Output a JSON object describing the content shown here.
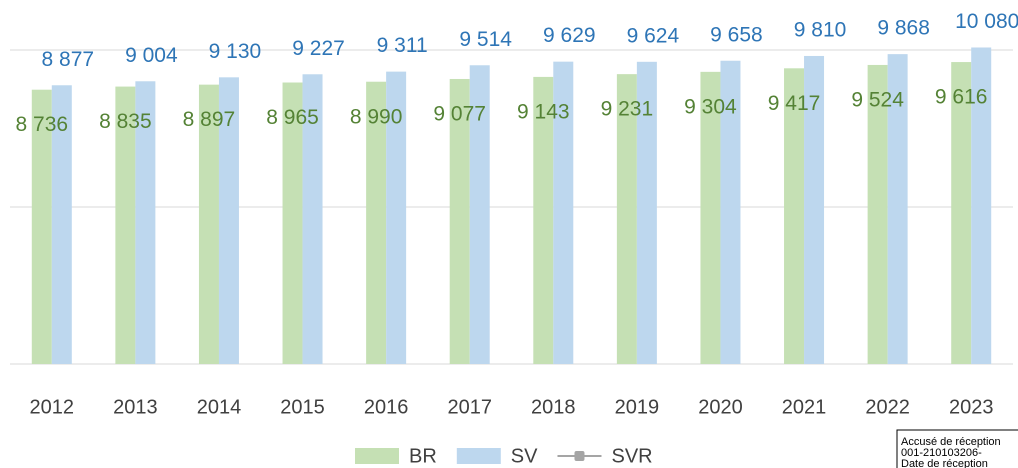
{
  "chart_data": {
    "type": "bar",
    "categories": [
      "2012",
      "2013",
      "2014",
      "2015",
      "2016",
      "2017",
      "2018",
      "2019",
      "2020",
      "2021",
      "2022",
      "2023"
    ],
    "series": [
      {
        "name": "BR",
        "color": "#c5e0b4",
        "label_color": "#548235",
        "values": [
          8736,
          8835,
          8897,
          8965,
          8990,
          9077,
          9143,
          9231,
          9304,
          9417,
          9524,
          9616
        ],
        "value_labels": [
          "8 736",
          "8 835",
          "8 897",
          "8 965",
          "8 990",
          "9 077",
          "9 143",
          "9 231",
          "9 304",
          "9 417",
          "9 524",
          "9 616"
        ]
      },
      {
        "name": "SV",
        "color": "#bdd7ee",
        "label_color": "#2e75b6",
        "values": [
          8877,
          9004,
          9130,
          9227,
          9311,
          9514,
          9629,
          9624,
          9658,
          9810,
          9868,
          10080
        ],
        "value_labels": [
          "8 877",
          "9 004",
          "9 130",
          "9 227",
          "9 311",
          "9 514",
          "9 629",
          "9 624",
          "9 658",
          "9 810",
          "9 868",
          "10 080"
        ]
      },
      {
        "name": "SVR",
        "color": "#a5a5a5",
        "kind": "line",
        "values": [
          null,
          null,
          null,
          null,
          null,
          null,
          null,
          null,
          null,
          null,
          null,
          null
        ]
      }
    ],
    "ylim": [
      0,
      10000
    ],
    "yticks": [
      0,
      5000,
      10000
    ],
    "grid": true,
    "legend": "bottom"
  },
  "stamp": {
    "lines": [
      "Accusé de réception",
      "001-210103206-",
      "Date de réception"
    ]
  }
}
